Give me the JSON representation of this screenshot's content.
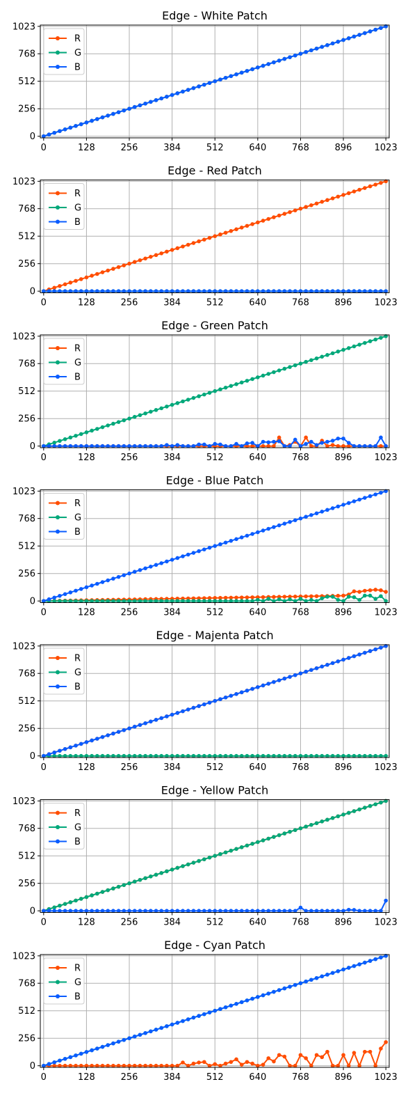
{
  "figure": {
    "colors": {
      "R": "#ff4d00",
      "G": "#00a87a",
      "B": "#0a5cff",
      "grid": "#b0b0b0",
      "axis": "#000000"
    },
    "x_ticks": [
      0,
      128,
      256,
      384,
      512,
      640,
      768,
      896,
      1023
    ],
    "y_ticks": [
      0,
      256,
      512,
      768,
      1023
    ],
    "xlim": [
      -10,
      1033
    ],
    "ylim": [
      -15,
      1035
    ],
    "legend": [
      "R",
      "G",
      "B"
    ],
    "legend_position": "top-left",
    "grid": true
  },
  "chart_data": [
    {
      "type": "line",
      "title": "Edge - White Patch",
      "x": "0..1023 step 16 (65 samples)",
      "series": [
        {
          "name": "R",
          "values": "ramp",
          "noise": []
        },
        {
          "name": "G",
          "values": "ramp",
          "noise": []
        },
        {
          "name": "B",
          "values": "ramp",
          "noise": []
        }
      ]
    },
    {
      "type": "line",
      "title": "Edge - Red Patch",
      "series": [
        {
          "name": "R",
          "values": "ramp",
          "noise": []
        },
        {
          "name": "G",
          "values": "zero",
          "noise": []
        },
        {
          "name": "B",
          "values": "zero",
          "noise": []
        }
      ]
    },
    {
      "type": "line",
      "title": "Edge - Green Patch",
      "series": [
        {
          "name": "R",
          "values": "zero",
          "noise": [
            [
              704,
              80
            ],
            [
              736,
              10
            ],
            [
              752,
              40
            ],
            [
              784,
              80
            ],
            [
              832,
              50
            ],
            [
              864,
              10
            ],
            [
              992,
              0
            ]
          ]
        },
        {
          "name": "G",
          "values": "ramp",
          "noise": []
        },
        {
          "name": "B",
          "values": "zero",
          "noise": [
            [
              368,
              10
            ],
            [
              400,
              10
            ],
            [
              464,
              15
            ],
            [
              480,
              15
            ],
            [
              512,
              20
            ],
            [
              528,
              15
            ],
            [
              576,
              20
            ],
            [
              608,
              25
            ],
            [
              624,
              30
            ],
            [
              656,
              40
            ],
            [
              672,
              35
            ],
            [
              688,
              40
            ],
            [
              704,
              45
            ],
            [
              720,
              0
            ],
            [
              752,
              60
            ],
            [
              768,
              0
            ],
            [
              784,
              20
            ],
            [
              800,
              40
            ],
            [
              816,
              10
            ],
            [
              832,
              30
            ],
            [
              848,
              40
            ],
            [
              864,
              50
            ],
            [
              880,
              70
            ],
            [
              896,
              70
            ],
            [
              912,
              30
            ],
            [
              1008,
              80
            ],
            [
              1016,
              135
            ],
            [
              1023,
              0
            ]
          ]
        }
      ]
    },
    {
      "type": "line",
      "title": "Edge - Blue Patch",
      "series": [
        {
          "name": "R",
          "values": "small-ramp",
          "noise": [
            [
              896,
              50
            ],
            [
              912,
              60
            ],
            [
              928,
              90
            ],
            [
              944,
              85
            ],
            [
              960,
              95
            ],
            [
              976,
              100
            ],
            [
              992,
              105
            ],
            [
              1008,
              100
            ],
            [
              1023,
              85
            ]
          ]
        },
        {
          "name": "G",
          "values": "zero",
          "noise": [
            [
              640,
              10
            ],
            [
              672,
              20
            ],
            [
              704,
              15
            ],
            [
              736,
              15
            ],
            [
              768,
              20
            ],
            [
              800,
              10
            ],
            [
              832,
              25
            ],
            [
              848,
              40
            ],
            [
              864,
              40
            ],
            [
              880,
              10
            ],
            [
              912,
              40
            ],
            [
              928,
              35
            ],
            [
              944,
              10
            ],
            [
              960,
              50
            ],
            [
              976,
              50
            ],
            [
              992,
              20
            ],
            [
              1008,
              45
            ],
            [
              1023,
              0
            ]
          ]
        },
        {
          "name": "B",
          "values": "ramp",
          "noise": []
        }
      ]
    },
    {
      "type": "line",
      "title": "Edge - Majenta Patch",
      "series": [
        {
          "name": "R",
          "values": "ramp",
          "noise": []
        },
        {
          "name": "G",
          "values": "zero",
          "noise": []
        },
        {
          "name": "B",
          "values": "ramp",
          "noise": []
        }
      ]
    },
    {
      "type": "line",
      "title": "Edge - Yellow Patch",
      "series": [
        {
          "name": "R",
          "values": "ramp",
          "noise": []
        },
        {
          "name": "G",
          "values": "ramp",
          "noise": []
        },
        {
          "name": "B",
          "values": "zero",
          "noise": [
            [
              768,
              30
            ],
            [
              912,
              10
            ],
            [
              928,
              8
            ],
            [
              1023,
              95
            ]
          ]
        }
      ]
    },
    {
      "type": "line",
      "title": "Edge - Cyan Patch",
      "series": [
        {
          "name": "R",
          "values": "zero",
          "noise": [
            [
              416,
              30
            ],
            [
              448,
              20
            ],
            [
              464,
              30
            ],
            [
              480,
              35
            ],
            [
              512,
              15
            ],
            [
              544,
              20
            ],
            [
              560,
              35
            ],
            [
              576,
              60
            ],
            [
              592,
              10
            ],
            [
              608,
              35
            ],
            [
              624,
              20
            ],
            [
              656,
              10
            ],
            [
              672,
              70
            ],
            [
              688,
              40
            ],
            [
              704,
              100
            ],
            [
              720,
              85
            ],
            [
              736,
              0
            ],
            [
              768,
              100
            ],
            [
              784,
              70
            ],
            [
              800,
              0
            ],
            [
              816,
              100
            ],
            [
              832,
              80
            ],
            [
              848,
              130
            ],
            [
              864,
              0
            ],
            [
              880,
              0
            ],
            [
              896,
              100
            ],
            [
              912,
              0
            ],
            [
              928,
              120
            ],
            [
              944,
              0
            ],
            [
              960,
              130
            ],
            [
              976,
              130
            ],
            [
              992,
              0
            ],
            [
              1008,
              160
            ],
            [
              1023,
              220
            ]
          ]
        },
        {
          "name": "G",
          "values": "ramp",
          "noise": []
        },
        {
          "name": "B",
          "values": "ramp",
          "noise": []
        }
      ]
    }
  ]
}
